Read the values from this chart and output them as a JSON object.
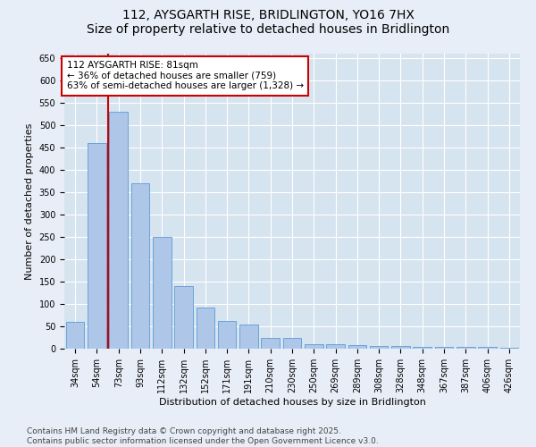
{
  "title": "112, AYSGARTH RISE, BRIDLINGTON, YO16 7HX",
  "subtitle": "Size of property relative to detached houses in Bridlington",
  "xlabel": "Distribution of detached houses by size in Bridlington",
  "ylabel": "Number of detached properties",
  "categories": [
    "34sqm",
    "54sqm",
    "73sqm",
    "93sqm",
    "112sqm",
    "132sqm",
    "152sqm",
    "171sqm",
    "191sqm",
    "210sqm",
    "230sqm",
    "250sqm",
    "269sqm",
    "289sqm",
    "308sqm",
    "328sqm",
    "348sqm",
    "367sqm",
    "387sqm",
    "406sqm",
    "426sqm"
  ],
  "values": [
    60,
    460,
    530,
    370,
    250,
    140,
    93,
    62,
    55,
    25,
    25,
    10,
    10,
    8,
    7,
    7,
    5,
    5,
    5,
    5,
    3
  ],
  "bar_color": "#aec6e8",
  "bar_edge_color": "#5b9bd5",
  "vline_x": 1.5,
  "vline_color": "#cc0000",
  "annotation_line1": "112 AYSGARTH RISE: 81sqm",
  "annotation_line2": "← 36% of detached houses are smaller (759)",
  "annotation_line3": "63% of semi-detached houses are larger (1,328) →",
  "annotation_box_facecolor": "#ffffff",
  "annotation_box_edgecolor": "#cc0000",
  "ylim": [
    0,
    660
  ],
  "yticks": [
    0,
    50,
    100,
    150,
    200,
    250,
    300,
    350,
    400,
    450,
    500,
    550,
    600,
    650
  ],
  "background_color": "#e8eef7",
  "plot_bg_color": "#d6e4f0",
  "grid_color": "#ffffff",
  "footer_line1": "Contains HM Land Registry data © Crown copyright and database right 2025.",
  "footer_line2": "Contains public sector information licensed under the Open Government Licence v3.0.",
  "title_fontsize": 10,
  "subtitle_fontsize": 9,
  "axis_label_fontsize": 8,
  "tick_fontsize": 7,
  "annotation_fontsize": 7.5,
  "footer_fontsize": 6.5
}
